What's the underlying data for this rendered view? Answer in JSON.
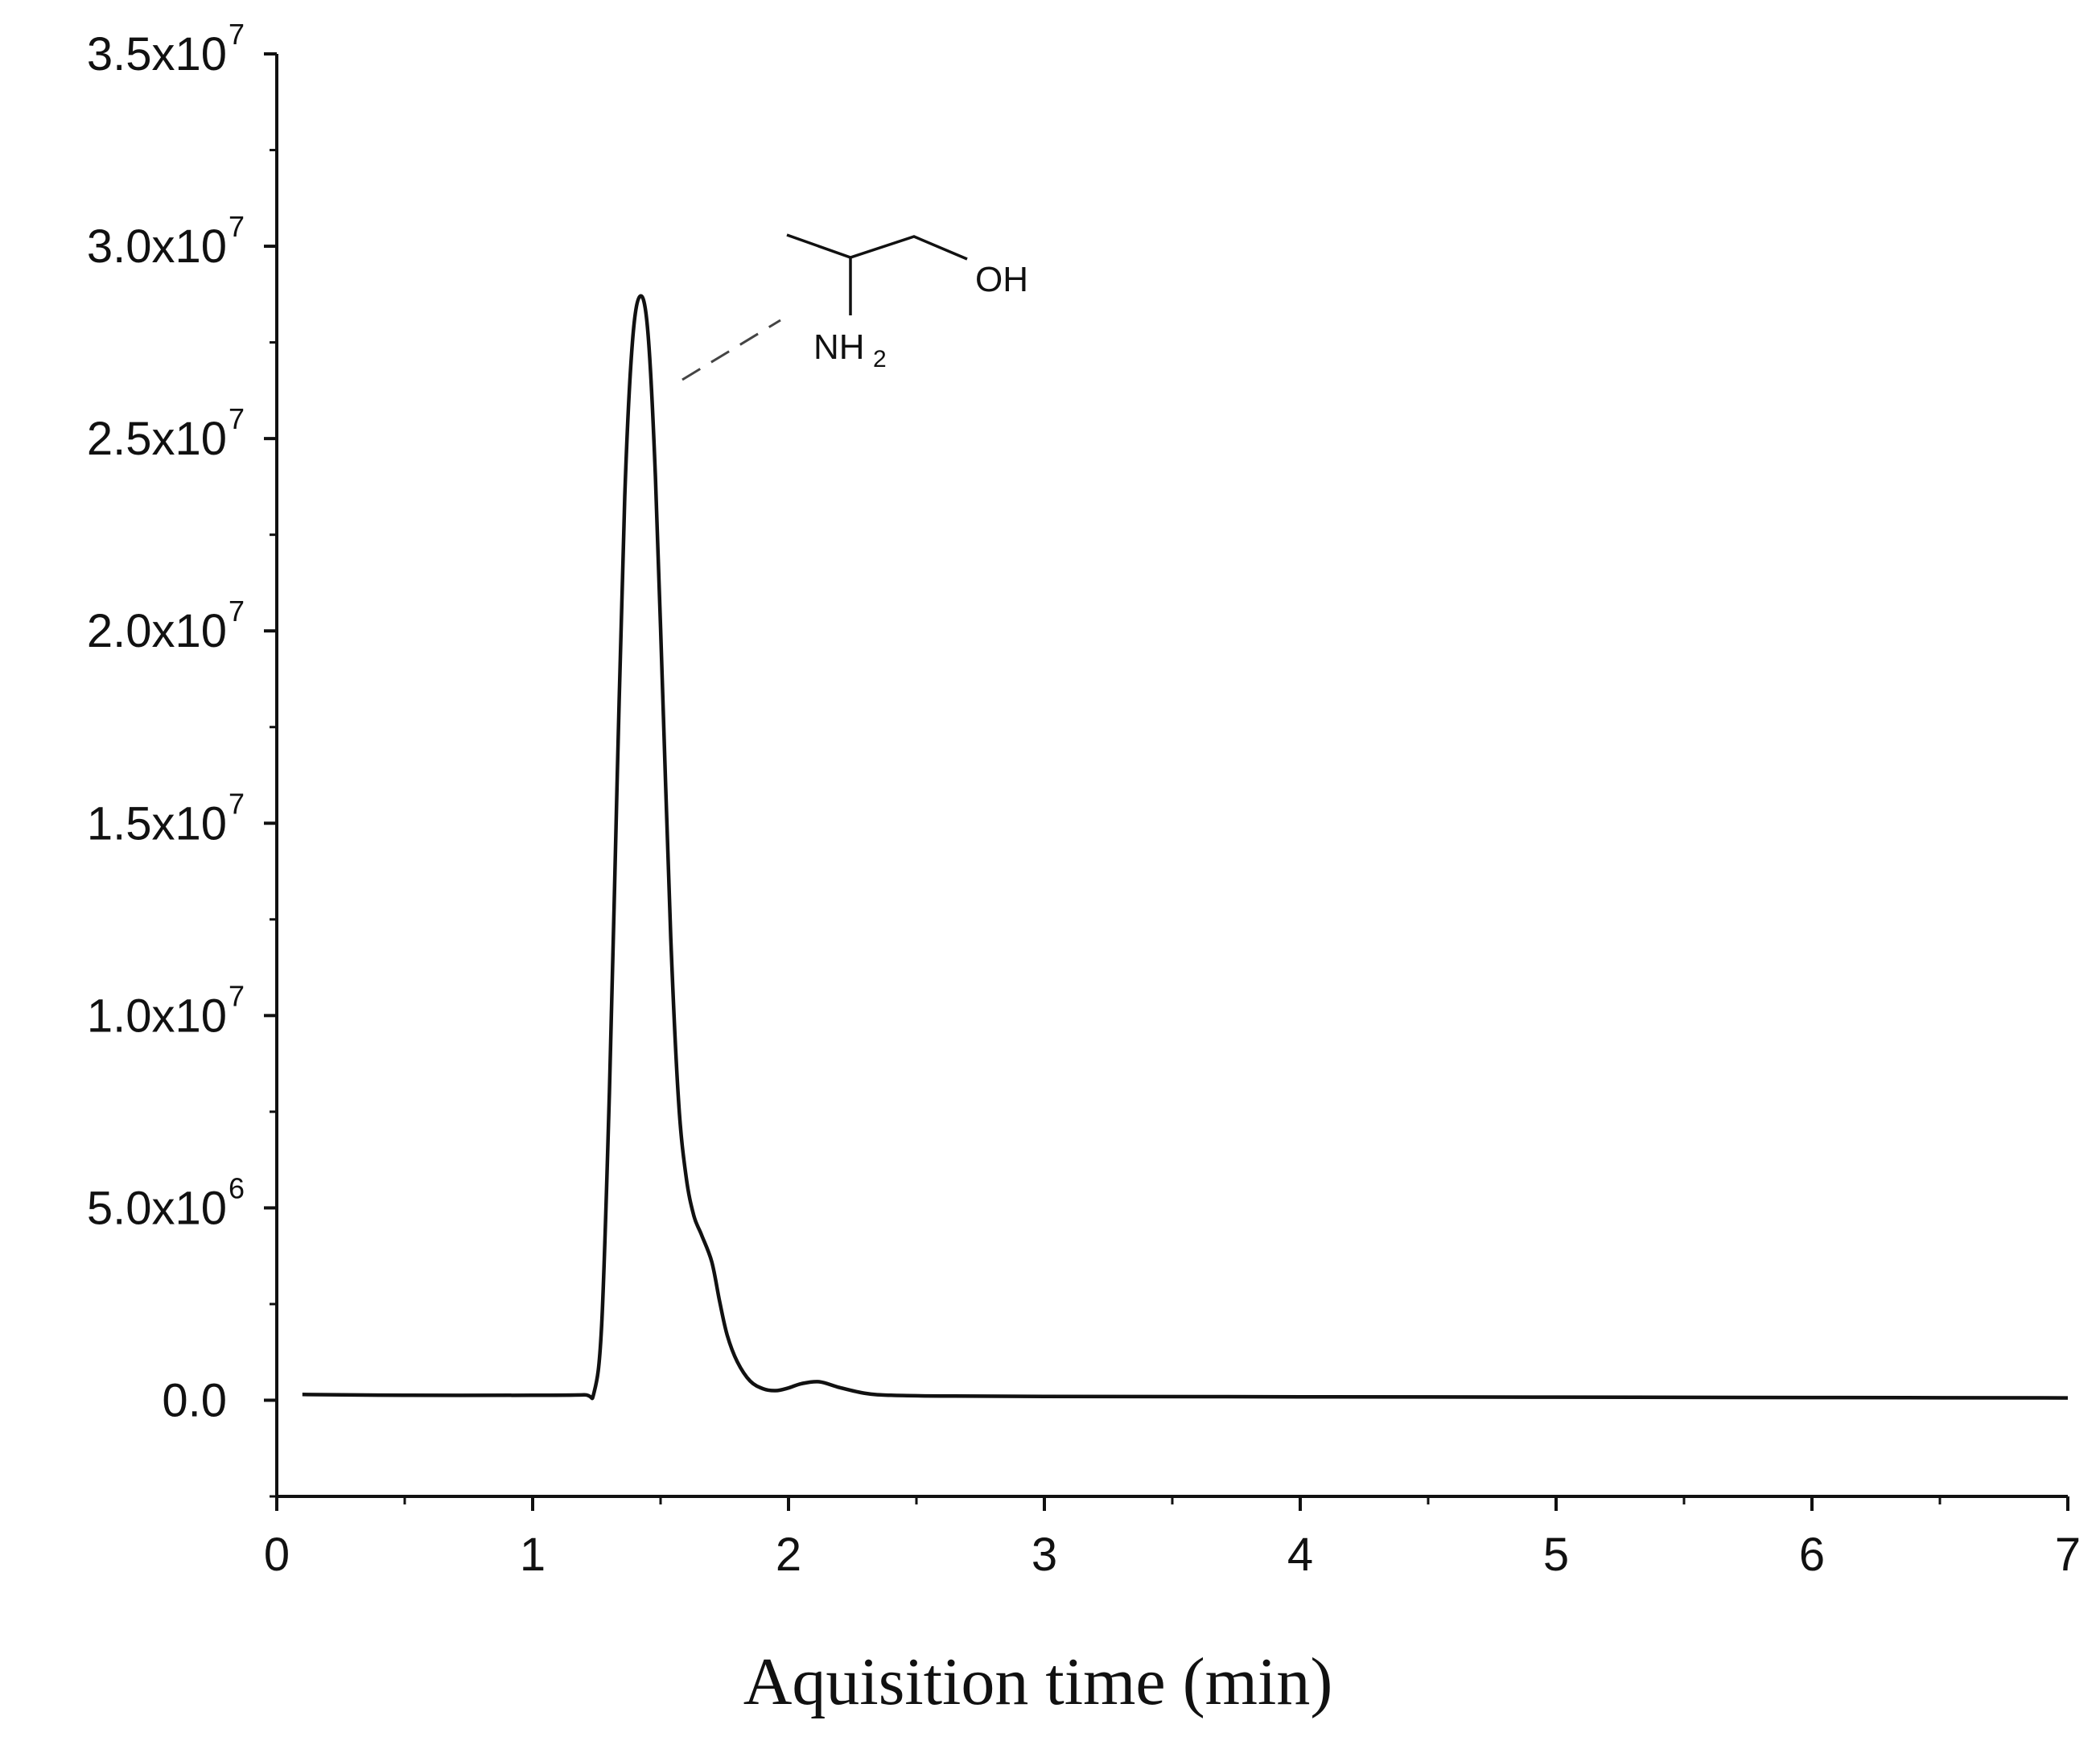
{
  "chart_data": {
    "type": "line",
    "title": "",
    "xlabel": "Aquisition time (min)",
    "ylabel": "",
    "xlim": [
      0,
      7
    ],
    "ylim": [
      -2500000,
      35000000
    ],
    "grid": false,
    "x_ticks": [
      {
        "value": 0,
        "label": "0"
      },
      {
        "value": 1,
        "label": "1"
      },
      {
        "value": 2,
        "label": "2"
      },
      {
        "value": 3,
        "label": "3"
      },
      {
        "value": 4,
        "label": "4"
      },
      {
        "value": 5,
        "label": "5"
      },
      {
        "value": 6,
        "label": "6"
      },
      {
        "value": 7,
        "label": "7"
      }
    ],
    "y_ticks": [
      {
        "value": 0,
        "base": "0.0",
        "exp": ""
      },
      {
        "value": 5000000,
        "base": "5.0x10",
        "exp": "6"
      },
      {
        "value": 10000000,
        "base": "1.0x10",
        "exp": "7"
      },
      {
        "value": 15000000,
        "base": "1.5x10",
        "exp": "7"
      },
      {
        "value": 20000000,
        "base": "2.0x10",
        "exp": "7"
      },
      {
        "value": 25000000,
        "base": "2.5x10",
        "exp": "7"
      },
      {
        "value": 30000000,
        "base": "3.0x10",
        "exp": "7"
      },
      {
        "value": 35000000,
        "base": "3.5x10",
        "exp": "7"
      }
    ],
    "series": [
      {
        "color": "#111111",
        "x": [
          0.1,
          0.5,
          1.0,
          1.2,
          1.24,
          1.27,
          1.3,
          1.33,
          1.36,
          1.39,
          1.42,
          1.45,
          1.48,
          1.51,
          1.54,
          1.57,
          1.6,
          1.63,
          1.66,
          1.7,
          1.73,
          1.76,
          1.8,
          1.85,
          1.9,
          1.95,
          2.0,
          2.05,
          2.12,
          2.2,
          2.3,
          2.4,
          2.6,
          3.0,
          4.0,
          5.0,
          6.0,
          7.0
        ],
        "y": [
          150000,
          130000,
          130000,
          140000,
          200000,
          2000000,
          8000000,
          16000000,
          23500000,
          27500000,
          28700000,
          27800000,
          24000000,
          18000000,
          12000000,
          7800000,
          5800000,
          4800000,
          4300000,
          3600000,
          2600000,
          1700000,
          1000000,
          500000,
          300000,
          250000,
          320000,
          430000,
          480000,
          330000,
          180000,
          130000,
          110000,
          100000,
          90000,
          80000,
          70000,
          60000
        ]
      }
    ],
    "annotation": {
      "type": "chemical-structure",
      "labels": {
        "hydroxyl": "OH",
        "amine": "NH",
        "amine_subscript": "2"
      }
    }
  }
}
